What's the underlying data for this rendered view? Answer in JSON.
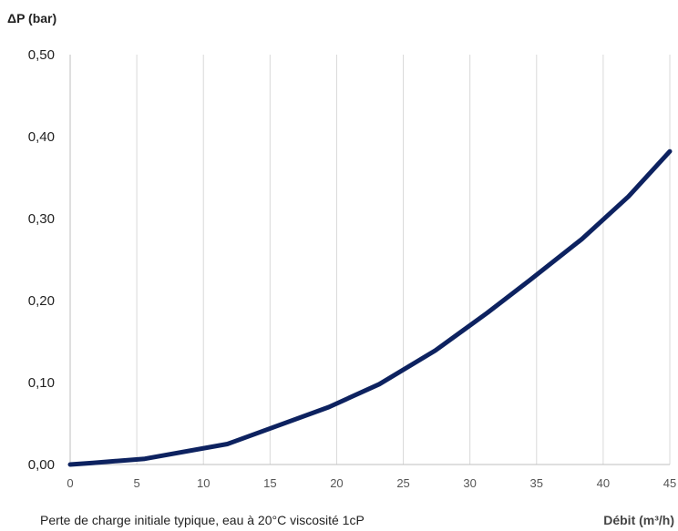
{
  "chart_data": {
    "type": "line",
    "ylabel": "ΔP (bar)",
    "xlabel": "Débit (m³/h)",
    "caption": "Perte de charge initiale typique, eau à 20°C viscosité 1cP",
    "xlim": [
      0,
      45
    ],
    "ylim": [
      0,
      0.5
    ],
    "x_ticks": [
      "0",
      "5",
      "10",
      "15",
      "20",
      "25",
      "30",
      "35",
      "40",
      "45"
    ],
    "y_ticks": [
      "0,00",
      "0,10",
      "0,20",
      "0,30",
      "0,40",
      "0,50"
    ],
    "grid": "vertical",
    "line_color": "#0d2260",
    "series": [
      {
        "x": [
          0,
          1.7,
          5.6,
          11.8,
          19.4,
          23.2,
          27.4,
          31.3,
          34.5,
          38.4,
          41.9,
          45.0
        ],
        "y": [
          0.0,
          0.002,
          0.007,
          0.025,
          0.07,
          0.098,
          0.139,
          0.185,
          0.225,
          0.275,
          0.327,
          0.382
        ]
      }
    ]
  }
}
